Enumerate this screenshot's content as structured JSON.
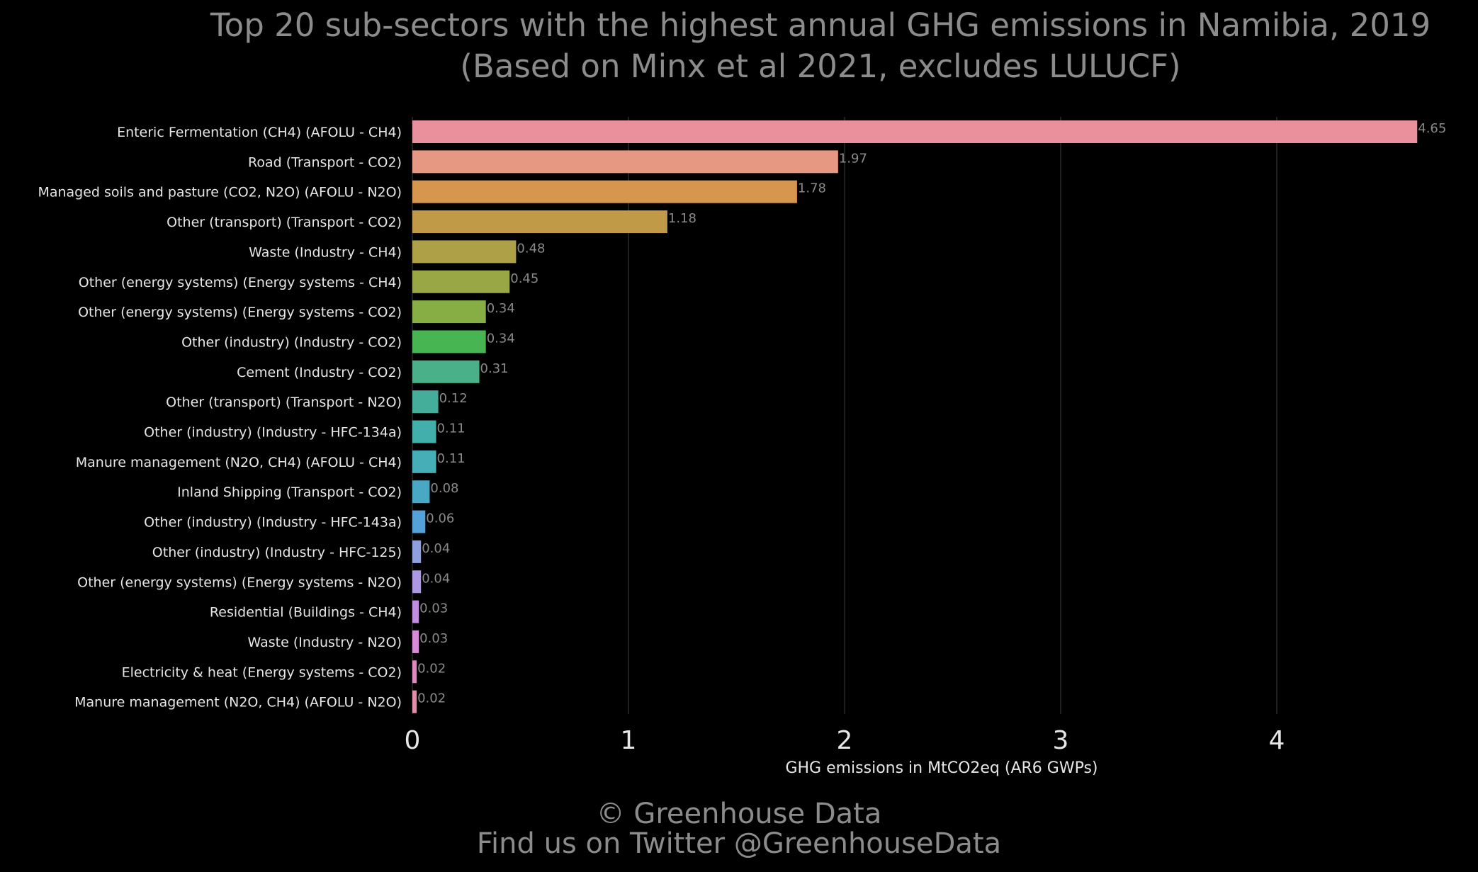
{
  "chart_data": {
    "type": "bar",
    "orientation": "horizontal",
    "title": "Top 20 sub-sectors with the highest annual GHG emissions in Namibia, 2019",
    "subtitle": "(Based on Minx et al 2021, excludes LULUCF)",
    "xlabel": "GHG emissions in MtCO2eq (AR6 GWPs)",
    "ylabel": "",
    "xlim": [
      0,
      4.75
    ],
    "xticks": [
      "0",
      "1",
      "2",
      "3",
      "4"
    ],
    "grid": true,
    "categories": [
      "Enteric Fermentation (CH4) (AFOLU - CH4)",
      "Road (Transport - CO2)",
      "Managed soils and pasture (CO2, N2O) (AFOLU - N2O)",
      "Other (transport) (Transport - CO2)",
      "Waste (Industry - CH4)",
      "Other (energy systems) (Energy systems - CH4)",
      "Other (energy systems) (Energy systems - CO2)",
      "Other (industry) (Industry - CO2)",
      "Cement (Industry - CO2)",
      "Other (transport) (Transport - N2O)",
      "Other (industry) (Industry - HFC-134a)",
      "Manure management (N2O, CH4) (AFOLU - CH4)",
      "Inland Shipping (Transport - CO2)",
      "Other (industry) (Industry - HFC-143a)",
      "Other (industry) (Industry - HFC-125)",
      "Other (energy systems) (Energy systems - N2O)",
      "Residential (Buildings - CH4)",
      "Waste (Industry - N2O)",
      "Electricity & heat (Energy systems - CO2)",
      "Manure management (N2O, CH4) (AFOLU - N2O)"
    ],
    "values": [
      4.65,
      1.97,
      1.78,
      1.18,
      0.48,
      0.45,
      0.34,
      0.34,
      0.31,
      0.12,
      0.11,
      0.11,
      0.08,
      0.06,
      0.04,
      0.04,
      0.03,
      0.03,
      0.02,
      0.02
    ],
    "value_labels": [
      "4.65",
      "1.97",
      "1.78",
      "1.18",
      "0.48",
      "0.45",
      "0.34",
      "0.34",
      "0.31",
      "0.12",
      "0.11",
      "0.11",
      "0.08",
      "0.06",
      "0.04",
      "0.04",
      "0.03",
      "0.03",
      "0.02",
      "0.02"
    ],
    "colors": [
      "#E8919D",
      "#E69882",
      "#D7964E",
      "#C19A48",
      "#ADA046",
      "#9AA745",
      "#86AE44",
      "#47B551",
      "#4AB08A",
      "#44AE9A",
      "#43AFAA",
      "#45AEB6",
      "#49A8C4",
      "#55A2D9",
      "#8FA0E0",
      "#AE98E2",
      "#C48EE0",
      "#D88BD6",
      "#DE89BF",
      "#E38DAA"
    ]
  },
  "credits": {
    "line1": "© Greenhouse Data",
    "line2": "Find us on Twitter @GreenhouseData"
  }
}
